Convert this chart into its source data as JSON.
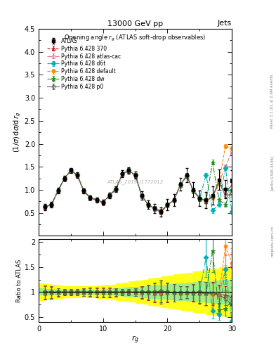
{
  "title_top": "13000 GeV pp",
  "title_right": "Jets",
  "plot_title": "Opening angle r_g (ATLAS soft-drop observables)",
  "ylabel_main": "(1/σ) dσ/d r_g",
  "ylabel_ratio": "Ratio to ATLAS",
  "xlabel": "r_g",
  "watermark": "ATLAS_2019_I1772012",
  "ylim_main": [
    0.0,
    4.5
  ],
  "ylim_ratio": [
    0.4,
    2.05
  ],
  "xlim": [
    0,
    30
  ],
  "yticks_main": [
    0.5,
    1.0,
    1.5,
    2.0,
    2.5,
    3.0,
    3.5,
    4.0,
    4.5
  ],
  "yticks_ratio": [
    0.5,
    1.0,
    1.5,
    2.0
  ],
  "xticks": [
    0,
    10,
    20,
    30
  ],
  "x": [
    1,
    2,
    3,
    4,
    5,
    6,
    7,
    8,
    9,
    10,
    11,
    12,
    13,
    14,
    15,
    16,
    17,
    18,
    19,
    20,
    21,
    22,
    23,
    24,
    25,
    26,
    27,
    28,
    29,
    30
  ],
  "atlas_y": [
    0.63,
    0.68,
    0.98,
    1.25,
    1.42,
    1.32,
    0.98,
    0.83,
    0.78,
    0.73,
    0.88,
    1.02,
    1.35,
    1.42,
    1.32,
    0.88,
    0.68,
    0.6,
    0.52,
    0.68,
    0.78,
    1.12,
    1.32,
    1.0,
    0.82,
    0.78,
    0.88,
    1.22,
    1.02,
    1.2
  ],
  "atlas_yerr": [
    0.07,
    0.06,
    0.06,
    0.05,
    0.06,
    0.06,
    0.05,
    0.05,
    0.05,
    0.05,
    0.06,
    0.06,
    0.07,
    0.07,
    0.08,
    0.09,
    0.09,
    0.1,
    0.1,
    0.12,
    0.13,
    0.14,
    0.15,
    0.16,
    0.17,
    0.18,
    0.2,
    0.22,
    0.2,
    0.22
  ],
  "p370_y": [
    0.62,
    0.67,
    0.97,
    1.24,
    1.41,
    1.31,
    0.97,
    0.82,
    0.77,
    0.72,
    0.87,
    1.01,
    1.34,
    1.41,
    1.31,
    0.87,
    0.67,
    0.59,
    0.51,
    0.67,
    0.77,
    1.1,
    1.3,
    0.98,
    0.8,
    0.76,
    0.86,
    1.18,
    0.95,
    1.1
  ],
  "p370_color": "#c00000",
  "p370_style": "--",
  "p370_marker": "^",
  "p370_mfc": "none",
  "p370_label": "Pythia 6.428 370",
  "patlas_cac_y": [
    0.63,
    0.68,
    0.98,
    1.25,
    1.42,
    1.32,
    0.98,
    0.83,
    0.78,
    0.73,
    0.88,
    1.02,
    1.35,
    1.42,
    1.32,
    0.88,
    0.68,
    0.6,
    0.53,
    0.68,
    0.77,
    1.11,
    1.31,
    0.99,
    0.82,
    0.76,
    0.85,
    1.15,
    1.5,
    1.82
  ],
  "patlas_cac_color": "#e8748a",
  "patlas_cac_style": "-.",
  "patlas_cac_marker": "o",
  "patlas_cac_mfc": "none",
  "patlas_cac_label": "Pythia 6.428 atlas-cac",
  "pd6t_y": [
    0.63,
    0.68,
    0.98,
    1.25,
    1.42,
    1.32,
    0.98,
    0.83,
    0.78,
    0.73,
    0.88,
    1.02,
    1.35,
    1.42,
    1.32,
    0.88,
    0.68,
    0.6,
    0.53,
    0.68,
    0.77,
    1.11,
    1.31,
    0.99,
    0.82,
    1.32,
    0.55,
    0.68,
    1.48,
    0.52
  ],
  "pd6t_color": "#00b0b0",
  "pd6t_style": "-.",
  "pd6t_marker": "D",
  "pd6t_mfc": "#00b0b0",
  "pd6t_label": "Pythia 6.428 d6t",
  "pdefault_y": [
    0.63,
    0.68,
    0.98,
    1.25,
    1.42,
    1.32,
    0.98,
    0.83,
    0.78,
    0.73,
    0.88,
    1.02,
    1.35,
    1.42,
    1.32,
    0.88,
    0.68,
    0.6,
    0.52,
    0.68,
    0.77,
    1.1,
    1.3,
    0.99,
    0.82,
    0.75,
    0.84,
    1.14,
    1.95,
    1.9
  ],
  "pdefault_color": "#ff8c00",
  "pdefault_style": "--",
  "pdefault_marker": "o",
  "pdefault_mfc": "#ff8c00",
  "pdefault_label": "Pythia 6.428 default",
  "pdw_y": [
    0.63,
    0.68,
    0.98,
    1.25,
    1.42,
    1.32,
    0.98,
    0.83,
    0.78,
    0.73,
    0.88,
    1.02,
    1.35,
    1.42,
    1.32,
    0.88,
    0.68,
    0.6,
    0.53,
    0.68,
    0.77,
    1.11,
    1.31,
    0.99,
    0.82,
    0.76,
    1.6,
    0.78,
    0.68,
    1.0
  ],
  "pdw_color": "#228b22",
  "pdw_style": "-.",
  "pdw_marker": "*",
  "pdw_mfc": "#228b22",
  "pdw_label": "Pythia 6.428 dw",
  "pp0_y": [
    0.63,
    0.68,
    0.98,
    1.25,
    1.42,
    1.32,
    0.98,
    0.83,
    0.78,
    0.73,
    0.88,
    1.02,
    1.35,
    1.42,
    1.32,
    0.88,
    0.68,
    0.6,
    0.53,
    0.68,
    0.77,
    1.11,
    1.31,
    0.99,
    0.82,
    0.76,
    0.85,
    1.16,
    0.88,
    0.9
  ],
  "pp0_color": "#606060",
  "pp0_style": "-",
  "pp0_marker": "o",
  "pp0_mfc": "none",
  "pp0_label": "Pythia 6.428 p0",
  "band_edges": [
    0,
    1,
    2,
    3,
    4,
    5,
    6,
    7,
    8,
    9,
    10,
    11,
    12,
    13,
    14,
    15,
    16,
    17,
    18,
    19,
    20,
    21,
    22,
    23,
    24,
    25,
    26,
    27,
    28,
    29,
    30
  ],
  "band_green_lo": [
    0.93,
    0.94,
    0.94,
    0.95,
    0.95,
    0.95,
    0.95,
    0.95,
    0.95,
    0.95,
    0.94,
    0.93,
    0.92,
    0.91,
    0.9,
    0.89,
    0.88,
    0.87,
    0.86,
    0.85,
    0.84,
    0.83,
    0.82,
    0.81,
    0.8,
    0.79,
    0.78,
    0.77,
    0.76,
    0.75
  ],
  "band_green_hi": [
    1.07,
    1.06,
    1.06,
    1.05,
    1.05,
    1.05,
    1.05,
    1.05,
    1.05,
    1.05,
    1.06,
    1.07,
    1.08,
    1.09,
    1.1,
    1.11,
    1.12,
    1.13,
    1.14,
    1.15,
    1.16,
    1.17,
    1.18,
    1.19,
    1.2,
    1.21,
    1.22,
    1.23,
    1.24,
    1.25
  ],
  "band_yellow_lo": [
    0.82,
    0.84,
    0.85,
    0.87,
    0.88,
    0.88,
    0.88,
    0.88,
    0.88,
    0.87,
    0.86,
    0.85,
    0.83,
    0.81,
    0.79,
    0.77,
    0.75,
    0.73,
    0.71,
    0.69,
    0.67,
    0.65,
    0.63,
    0.61,
    0.59,
    0.57,
    0.55,
    0.53,
    0.51,
    0.49
  ],
  "band_yellow_hi": [
    1.18,
    1.16,
    1.15,
    1.13,
    1.12,
    1.12,
    1.12,
    1.12,
    1.12,
    1.13,
    1.14,
    1.15,
    1.17,
    1.19,
    1.21,
    1.23,
    1.25,
    1.27,
    1.29,
    1.31,
    1.33,
    1.35,
    1.37,
    1.39,
    1.41,
    1.43,
    1.45,
    1.47,
    1.49,
    1.51
  ]
}
